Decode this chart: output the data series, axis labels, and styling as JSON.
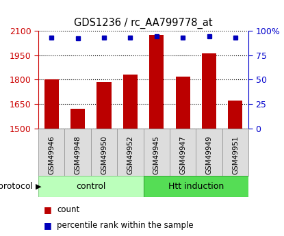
{
  "title": "GDS1236 / rc_AA799778_at",
  "samples": [
    "GSM49946",
    "GSM49948",
    "GSM49950",
    "GSM49952",
    "GSM49945",
    "GSM49947",
    "GSM49949",
    "GSM49951"
  ],
  "counts": [
    1800,
    1620,
    1785,
    1830,
    2075,
    1820,
    1960,
    1670
  ],
  "percentile_ranks": [
    93,
    92,
    93,
    93,
    94,
    93,
    94,
    93
  ],
  "groups": [
    "control",
    "control",
    "control",
    "control",
    "Htt induction",
    "Htt induction",
    "Htt induction",
    "Htt induction"
  ],
  "control_color": "#bbffbb",
  "htt_color": "#55dd55",
  "bar_color": "#bb0000",
  "dot_color": "#0000bb",
  "ylim_left": [
    1500,
    2100
  ],
  "ylim_right": [
    0,
    100
  ],
  "yticks_left": [
    1500,
    1650,
    1800,
    1950,
    2100
  ],
  "yticks_right": [
    0,
    25,
    50,
    75,
    100
  ],
  "left_tick_color": "#cc0000",
  "right_tick_color": "#0000cc",
  "legend_count_label": "count",
  "legend_percentile_label": "percentile rank within the sample",
  "protocol_label": "protocol",
  "control_label": "control",
  "htt_label": "Htt induction",
  "figsize": [
    4.15,
    3.45
  ],
  "dpi": 100,
  "n_control": 4,
  "n_htt": 4
}
